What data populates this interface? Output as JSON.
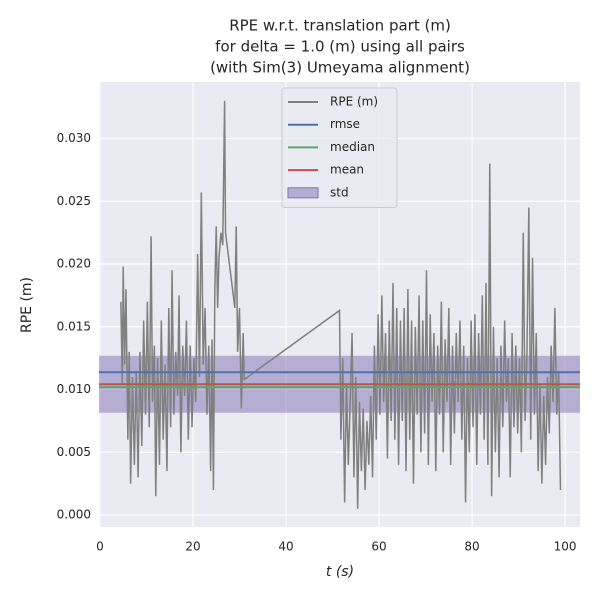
{
  "chart_data": {
    "type": "line",
    "title": [
      "RPE w.r.t. translation part (m)",
      "for delta = 1.0 (m) using all pairs",
      "(with Sim(3) Umeyama alignment)"
    ],
    "xlabel": "t (s)",
    "ylabel": "RPE (m)",
    "xlim": [
      -0.2,
      103.2
    ],
    "ylim": [
      -0.00095,
      0.0345
    ],
    "xticks": [
      0,
      20,
      40,
      60,
      80,
      100
    ],
    "yticks": [
      {
        "value": 0,
        "label": "0.000"
      },
      {
        "value": 0.005,
        "label": "0.005"
      },
      {
        "value": 0.01,
        "label": "0.010"
      },
      {
        "value": 0.015,
        "label": "0.015"
      },
      {
        "value": 0.02,
        "label": "0.020"
      },
      {
        "value": 0.025,
        "label": "0.025"
      },
      {
        "value": 0.03,
        "label": "0.030"
      }
    ],
    "grid": true,
    "legend": "upper center",
    "series": [
      {
        "name": "RPE (m)",
        "color": "#808080",
        "x": [
          4.5,
          4.8,
          5.0,
          5.3,
          5.6,
          6.0,
          6.3,
          6.6,
          7.0,
          7.4,
          7.8,
          8.2,
          8.6,
          9.0,
          9.4,
          9.8,
          10.2,
          10.6,
          11.0,
          11.3,
          11.7,
          12.0,
          12.4,
          12.8,
          13.2,
          13.6,
          14.0,
          14.4,
          14.8,
          15.2,
          15.5,
          15.9,
          16.3,
          16.7,
          17.0,
          17.4,
          17.8,
          18.2,
          18.6,
          19.0,
          19.4,
          19.8,
          20.2,
          20.6,
          21.0,
          21.4,
          21.8,
          22.2,
          22.6,
          23.0,
          23.4,
          23.8,
          24.1,
          24.4,
          24.7,
          25.0,
          25.3,
          25.6,
          26.0,
          26.4,
          26.8,
          27.0,
          27.5,
          28.0,
          28.5,
          29.0,
          29.3,
          29.6,
          30.0,
          30.4,
          30.8,
          31.0,
          51.5,
          51.8,
          52.2,
          52.6,
          53.0,
          53.4,
          53.8,
          54.2,
          54.6,
          55.0,
          55.4,
          55.8,
          56.2,
          56.6,
          57.0,
          57.4,
          57.8,
          58.2,
          58.6,
          59.0,
          59.4,
          59.8,
          60.2,
          60.6,
          61.0,
          61.4,
          61.8,
          62.2,
          62.6,
          63.0,
          63.4,
          63.8,
          64.2,
          64.6,
          65.0,
          65.4,
          65.8,
          66.2,
          66.6,
          67.0,
          67.4,
          67.8,
          68.2,
          68.6,
          69.0,
          69.4,
          69.8,
          70.2,
          70.6,
          71.0,
          71.4,
          71.8,
          72.2,
          72.6,
          73.0,
          73.4,
          73.8,
          74.2,
          74.6,
          75.0,
          75.4,
          75.8,
          76.2,
          76.6,
          77.0,
          77.4,
          77.8,
          78.2,
          78.6,
          79.0,
          79.4,
          79.8,
          80.2,
          80.6,
          81.0,
          81.4,
          81.8,
          82.2,
          82.6,
          83.0,
          83.4,
          83.8,
          84.2,
          84.6,
          85.0,
          85.4,
          85.8,
          86.2,
          86.6,
          87.0,
          87.4,
          87.8,
          88.2,
          88.6,
          89.0,
          89.4,
          89.8,
          90.2,
          90.6,
          91.0,
          91.4,
          91.8,
          92.2,
          92.6,
          93.0,
          93.4,
          93.8,
          94.2,
          94.6,
          95.0,
          95.4,
          95.8,
          96.2,
          96.6,
          97.0,
          97.4,
          97.8,
          98.2,
          98.6,
          99.0
        ],
        "values": [
          0.017,
          0.0105,
          0.0198,
          0.012,
          0.018,
          0.006,
          0.013,
          0.0025,
          0.011,
          0.004,
          0.0115,
          0.003,
          0.013,
          0.0055,
          0.0155,
          0.008,
          0.017,
          0.007,
          0.0222,
          0.009,
          0.0135,
          0.0015,
          0.0125,
          0.004,
          0.0155,
          0.006,
          0.012,
          0.0035,
          0.0165,
          0.007,
          0.0195,
          0.008,
          0.013,
          0.0095,
          0.0175,
          0.005,
          0.0135,
          0.0095,
          0.0155,
          0.006,
          0.0135,
          0.007,
          0.0125,
          0.009,
          0.0208,
          0.011,
          0.0257,
          0.012,
          0.0165,
          0.008,
          0.0135,
          0.0035,
          0.014,
          0.002,
          0.018,
          0.023,
          0.0165,
          0.0205,
          0.0225,
          0.0215,
          0.033,
          0.0225,
          0.021,
          0.0195,
          0.018,
          0.0165,
          0.023,
          0.013,
          0.0165,
          0.0085,
          0.0145,
          0.0108,
          0.0163,
          0.006,
          0.0125,
          0.001,
          0.0105,
          0.004,
          0.009,
          0.0145,
          0.003,
          0.011,
          0.0005,
          0.009,
          0.0035,
          0.0085,
          0.002,
          0.0075,
          0.004,
          0.0095,
          0.003,
          0.0135,
          0.006,
          0.016,
          0.008,
          0.0175,
          0.009,
          0.0145,
          0.0045,
          0.0155,
          0.0075,
          0.0185,
          0.006,
          0.0165,
          0.004,
          0.0155,
          0.0075,
          0.0165,
          0.0035,
          0.018,
          0.006,
          0.0155,
          0.0025,
          0.015,
          0.008,
          0.0175,
          0.005,
          0.0155,
          0.0065,
          0.0195,
          0.004,
          0.016,
          0.009,
          0.0145,
          0.0035,
          0.0135,
          0.008,
          0.017,
          0.005,
          0.014,
          0.009,
          0.0165,
          0.004,
          0.0135,
          0.0065,
          0.0145,
          0.009,
          0.0155,
          0.006,
          0.0135,
          0.001,
          0.0125,
          0.005,
          0.0155,
          0.007,
          0.016,
          0.004,
          0.0145,
          0.008,
          0.0175,
          0.006,
          0.0185,
          0.004,
          0.028,
          0.0015,
          0.015,
          0.005,
          0.0125,
          0.003,
          0.0135,
          0.007,
          0.0155,
          0.009,
          0.0125,
          0.003,
          0.0145,
          0.007,
          0.0135,
          0.0065,
          0.0125,
          0.005,
          0.0225,
          0.0075,
          0.013,
          0.0245,
          0.006,
          0.0205,
          0.008,
          0.0145,
          0.0035,
          0.0105,
          0.0025,
          0.0095,
          0.004,
          0.011,
          0.0065,
          0.0135,
          0.009,
          0.0165,
          0.008,
          0.0115,
          0.002
        ]
      }
    ],
    "stats": [
      {
        "name": "rmse",
        "color": "#4c72b0",
        "value": 0.01138
      },
      {
        "name": "median",
        "color": "#55a868",
        "value": 0.01019
      },
      {
        "name": "mean",
        "color": "#c44e52",
        "value": 0.01042
      }
    ],
    "std": {
      "name": "std",
      "color": "#8172b2",
      "value": 0.00227
    }
  }
}
